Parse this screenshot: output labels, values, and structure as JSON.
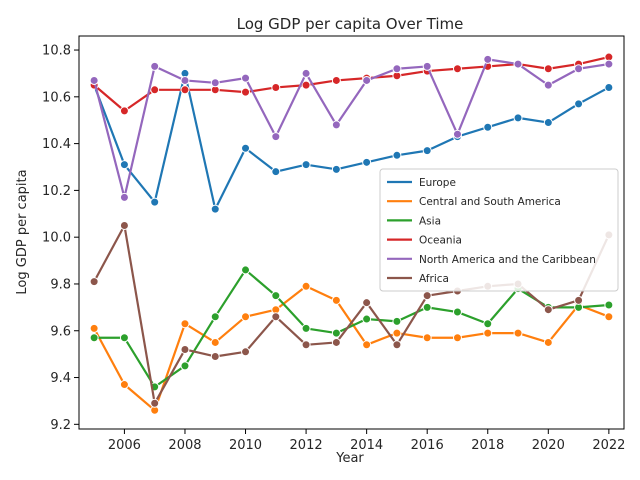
{
  "chart_data": {
    "type": "line",
    "title": "Log GDP per capita Over Time",
    "xlabel": "Year",
    "ylabel": "Log GDP per capita",
    "xlim": [
      2004.5,
      2022.5
    ],
    "ylim": [
      9.18,
      10.86
    ],
    "xticks": [
      2006,
      2008,
      2010,
      2012,
      2014,
      2016,
      2018,
      2020,
      2022
    ],
    "yticks": [
      9.2,
      9.4,
      9.6,
      9.8,
      10.0,
      10.2,
      10.4,
      10.6,
      10.8
    ],
    "ytick_labels": [
      "9.2",
      "9.4",
      "9.6",
      "9.8",
      "10.0",
      "10.2",
      "10.4",
      "10.6",
      "10.8"
    ],
    "grid": false,
    "legend_position": "center-right",
    "x": [
      2005,
      2006,
      2007,
      2008,
      2009,
      2010,
      2011,
      2012,
      2013,
      2014,
      2015,
      2016,
      2017,
      2018,
      2019,
      2020,
      2021,
      2022
    ],
    "series": [
      {
        "name": "Europe",
        "color": "#1f77b4",
        "values": [
          10.65,
          10.31,
          10.15,
          10.7,
          10.12,
          10.38,
          10.28,
          10.31,
          10.29,
          10.32,
          10.35,
          10.37,
          10.43,
          10.47,
          10.51,
          10.49,
          10.57,
          10.64
        ]
      },
      {
        "name": "Central and South America",
        "color": "#ff7f0e",
        "values": [
          9.61,
          9.37,
          9.26,
          9.63,
          9.55,
          9.66,
          9.69,
          9.79,
          9.73,
          9.54,
          9.59,
          9.57,
          9.57,
          9.59,
          9.59,
          9.55,
          9.71,
          9.66
        ]
      },
      {
        "name": "Asia",
        "color": "#2ca02c",
        "values": [
          9.57,
          9.57,
          9.36,
          9.45,
          9.66,
          9.86,
          9.75,
          9.61,
          9.59,
          9.65,
          9.64,
          9.7,
          9.68,
          9.63,
          9.78,
          9.7,
          9.7,
          9.71
        ]
      },
      {
        "name": "Oceania",
        "color": "#d62728",
        "values": [
          10.65,
          10.54,
          10.63,
          10.63,
          10.63,
          10.62,
          10.64,
          10.65,
          10.67,
          10.68,
          10.69,
          10.71,
          10.72,
          10.73,
          10.74,
          10.72,
          10.74,
          10.77
        ]
      },
      {
        "name": "North America and the Caribbean",
        "color": "#9467bd",
        "values": [
          10.67,
          10.17,
          10.73,
          10.67,
          10.66,
          10.68,
          10.43,
          10.7,
          10.48,
          10.67,
          10.72,
          10.73,
          10.44,
          10.76,
          10.74,
          10.65,
          10.72,
          10.74
        ]
      },
      {
        "name": "Africa",
        "color": "#8c564b",
        "values": [
          9.81,
          10.05,
          9.29,
          9.52,
          9.49,
          9.51,
          9.66,
          9.54,
          9.55,
          9.72,
          9.54,
          9.75,
          9.77,
          9.79,
          9.8,
          9.69,
          9.73,
          10.01
        ]
      }
    ]
  }
}
